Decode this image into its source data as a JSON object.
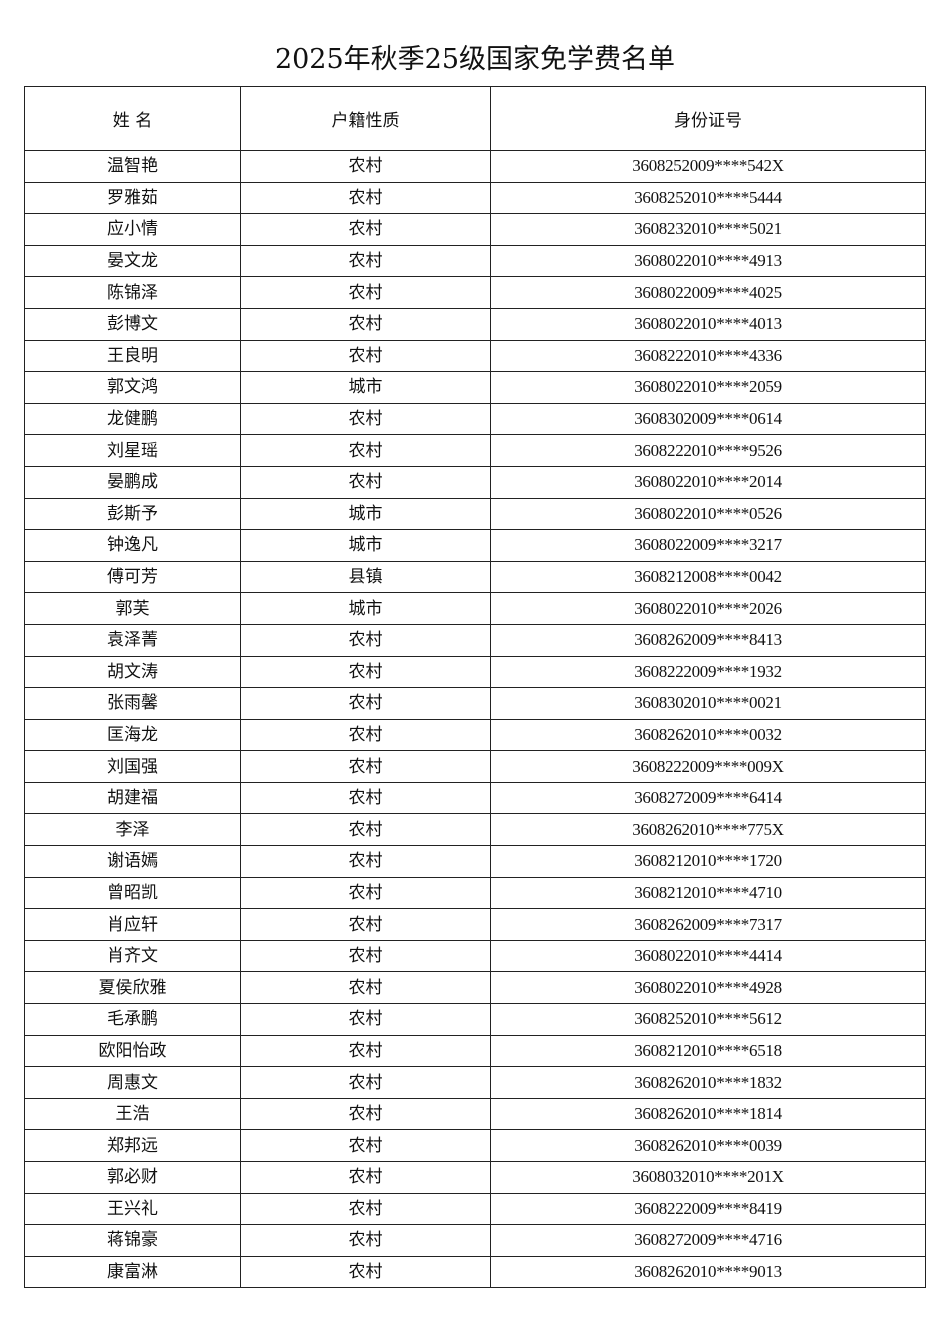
{
  "title": "2025年秋季25级国家免学费名单",
  "table": {
    "headers": [
      "姓 名",
      "户籍性质",
      "身份证号"
    ],
    "rows": [
      [
        "温智艳",
        "农村",
        "3608252009****542X"
      ],
      [
        "罗雅茹",
        "农村",
        "3608252010****5444"
      ],
      [
        "应小情",
        "农村",
        "3608232010****5021"
      ],
      [
        "晏文龙",
        "农村",
        "3608022010****4913"
      ],
      [
        "陈锦泽",
        "农村",
        "3608022009****4025"
      ],
      [
        "彭博文",
        "农村",
        "3608022010****4013"
      ],
      [
        "王良明",
        "农村",
        "3608222010****4336"
      ],
      [
        "郭文鸿",
        "城市",
        "3608022010****2059"
      ],
      [
        "龙健鹏",
        "农村",
        "3608302009****0614"
      ],
      [
        "刘星瑶",
        "农村",
        "3608222010****9526"
      ],
      [
        "晏鹏成",
        "农村",
        "3608022010****2014"
      ],
      [
        "彭斯予",
        "城市",
        "3608022010****0526"
      ],
      [
        "钟逸凡",
        "城市",
        "3608022009****3217"
      ],
      [
        "傅可芳",
        "县镇",
        "3608212008****0042"
      ],
      [
        "郭芙",
        "城市",
        "3608022010****2026"
      ],
      [
        "袁泽菁",
        "农村",
        "3608262009****8413"
      ],
      [
        "胡文涛",
        "农村",
        "3608222009****1932"
      ],
      [
        "张雨馨",
        "农村",
        "3608302010****0021"
      ],
      [
        "匡海龙",
        "农村",
        "3608262010****0032"
      ],
      [
        "刘国强",
        "农村",
        "3608222009****009X"
      ],
      [
        "胡建福",
        "农村",
        "3608272009****6414"
      ],
      [
        "李泽",
        "农村",
        "3608262010****775X"
      ],
      [
        "谢语嫣",
        "农村",
        "3608212010****1720"
      ],
      [
        "曾昭凯",
        "农村",
        "3608212010****4710"
      ],
      [
        "肖应轩",
        "农村",
        "3608262009****7317"
      ],
      [
        "肖齐文",
        "农村",
        "3608022010****4414"
      ],
      [
        "夏侯欣雅",
        "农村",
        "3608022010****4928"
      ],
      [
        "毛承鹏",
        "农村",
        "3608252010****5612"
      ],
      [
        "欧阳怡政",
        "农村",
        "3608212010****6518"
      ],
      [
        "周惠文",
        "农村",
        "3608262010****1832"
      ],
      [
        "王浩",
        "农村",
        "3608262010****1814"
      ],
      [
        "郑邦远",
        "农村",
        "3608262010****0039"
      ],
      [
        "郭必财",
        "农村",
        "3608032010****201X"
      ],
      [
        "王兴礼",
        "农村",
        "3608222009****8419"
      ],
      [
        "蒋锦豪",
        "农村",
        "3608272009****4716"
      ],
      [
        "康富淋",
        "农村",
        "3608262010****9013"
      ]
    ]
  }
}
